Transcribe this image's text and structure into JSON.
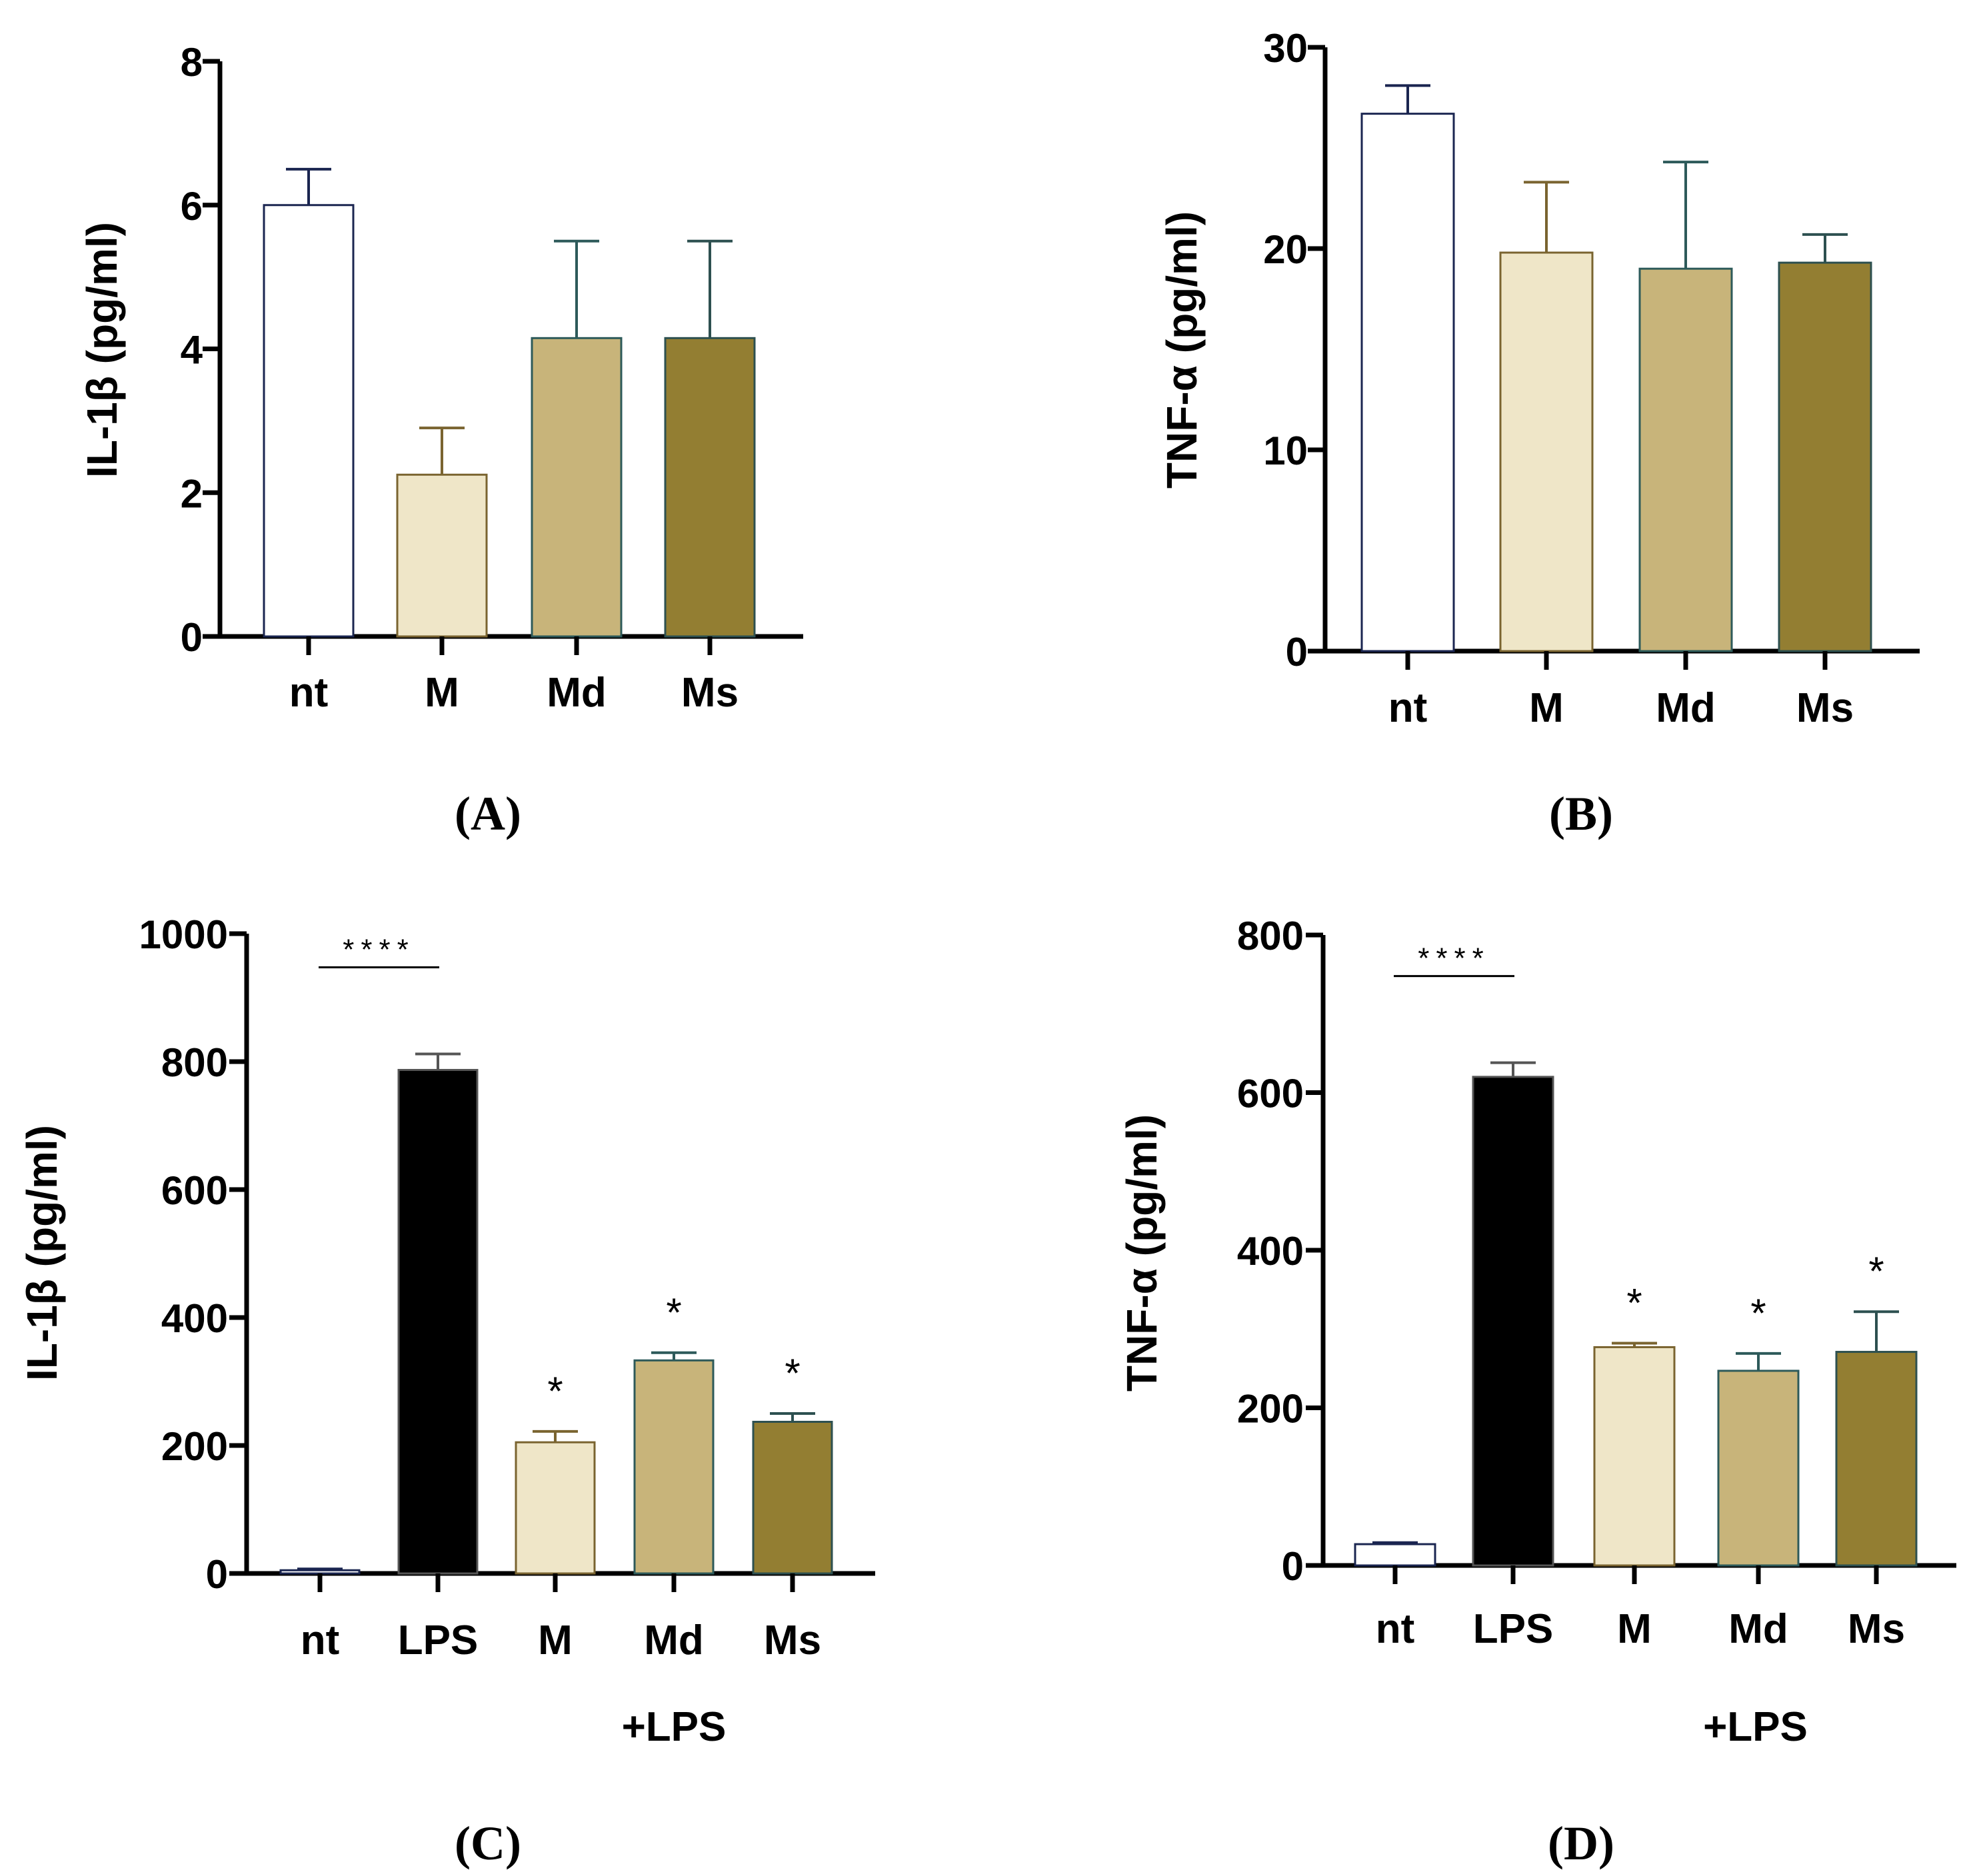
{
  "colors": {
    "nt": "#ffffff",
    "LPS": "#000000",
    "M": "#efe6c8",
    "Md": "#c8b47a",
    "Ms": "#937e32",
    "axis": "#000000"
  },
  "chart_data": [
    {
      "type": "bar",
      "panel_label": "(A)",
      "ylabel": "IL-1β (pg/ml)",
      "ylim": [
        0,
        8
      ],
      "yticks": [
        0,
        2,
        4,
        6,
        8
      ],
      "categories": [
        "nt",
        "M",
        "Md",
        "Ms"
      ],
      "values": [
        6.0,
        2.25,
        4.15,
        4.15
      ],
      "errors": [
        0.5,
        0.65,
        1.35,
        1.35
      ],
      "group_label": "",
      "significance": []
    },
    {
      "type": "bar",
      "panel_label": "(B)",
      "ylabel": "TNF-α (pg/ml)",
      "ylim": [
        0,
        30
      ],
      "yticks": [
        0,
        10,
        20,
        30
      ],
      "categories": [
        "nt",
        "M",
        "Md",
        "Ms"
      ],
      "values": [
        26.7,
        19.8,
        19.0,
        19.3
      ],
      "errors": [
        1.4,
        3.5,
        5.3,
        1.4
      ],
      "group_label": "",
      "significance": []
    },
    {
      "type": "bar",
      "panel_label": "(C)",
      "ylabel": "IL-1β (pg/ml)",
      "ylim": [
        0,
        1000
      ],
      "yticks": [
        0,
        200,
        400,
        600,
        800,
        1000
      ],
      "categories": [
        "nt",
        "LPS",
        "M",
        "Md",
        "Ms"
      ],
      "values": [
        5,
        787,
        205,
        333,
        237
      ],
      "errors": [
        2,
        25,
        17,
        12,
        13
      ],
      "group_label": "+LPS",
      "significance": [
        {
          "type": "bracket",
          "from": "nt",
          "to": "LPS",
          "label": "****"
        },
        {
          "type": "star",
          "category": "M",
          "label": "*"
        },
        {
          "type": "star",
          "category": "Md",
          "label": "*"
        },
        {
          "type": "star",
          "category": "Ms",
          "label": "*"
        }
      ]
    },
    {
      "type": "bar",
      "panel_label": "(D)",
      "ylabel": "TNF-α (pg/ml)",
      "ylim": [
        0,
        800
      ],
      "yticks": [
        0,
        200,
        400,
        600,
        800
      ],
      "categories": [
        "nt",
        "LPS",
        "M",
        "Md",
        "Ms"
      ],
      "values": [
        27,
        620,
        277,
        247,
        271
      ],
      "errors": [
        2,
        18,
        5,
        22,
        51
      ],
      "group_label": "+LPS",
      "significance": [
        {
          "type": "bracket",
          "from": "nt",
          "to": "LPS",
          "label": "****"
        },
        {
          "type": "star",
          "category": "M",
          "label": "*"
        },
        {
          "type": "star",
          "category": "Md",
          "label": "*"
        },
        {
          "type": "star",
          "category": "Ms",
          "label": "*"
        }
      ]
    }
  ]
}
